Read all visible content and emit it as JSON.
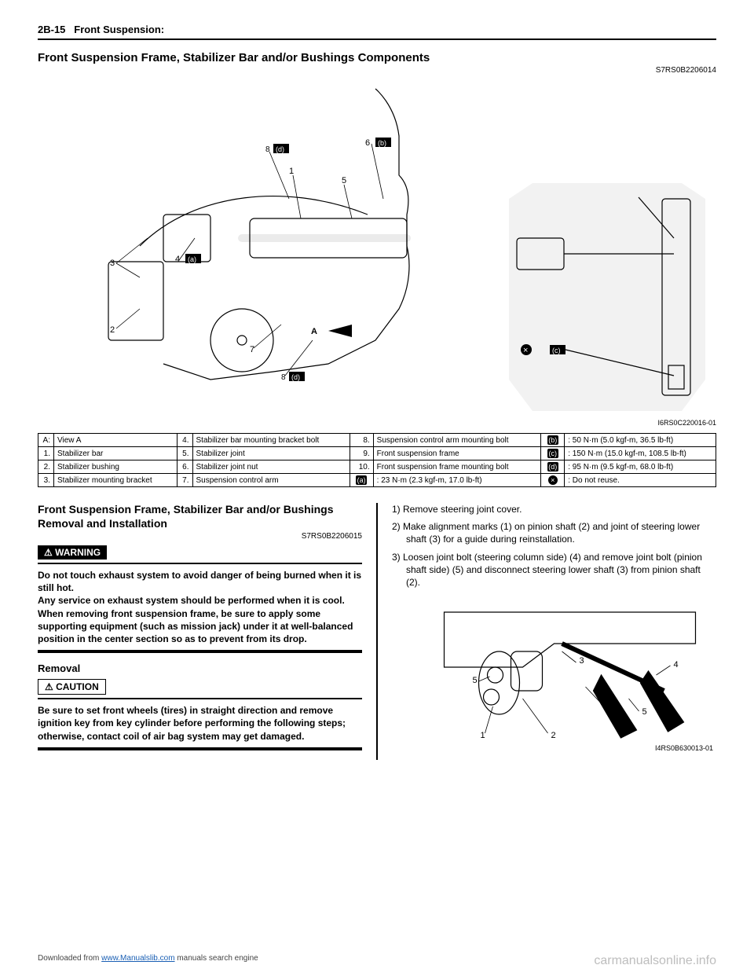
{
  "header": {
    "page_ref": "2B-15",
    "section": "Front Suspension:"
  },
  "title1": "Front Suspension Frame, Stabilizer Bar and/or Bushings Components",
  "ref1": "S7RS0B2206014",
  "diagram1": {
    "code": "I6RS0C220016-01",
    "view_label": "A",
    "arrow_label": "A"
  },
  "parts_table": {
    "rows": [
      [
        "A:",
        "View A",
        "4.",
        "Stabilizer bar mounting bracket bolt",
        "8.",
        "Suspension control arm mounting bolt",
        "(b)",
        "50 N·m (5.0 kgf-m, 36.5 lb-ft)"
      ],
      [
        "1.",
        "Stabilizer bar",
        "5.",
        "Stabilizer joint",
        "9.",
        "Front suspension frame",
        "(c)",
        "150 N·m (15.0 kgf-m, 108.5 lb-ft)"
      ],
      [
        "2.",
        "Stabilizer bushing",
        "6.",
        "Stabilizer joint nut",
        "10.",
        "Front suspension frame mounting bolt",
        "(d)",
        "95 N·m (9.5 kgf-m, 68.0 lb-ft)"
      ],
      [
        "3.",
        "Stabilizer mounting bracket",
        "7.",
        "Suspension control arm",
        "(a)",
        "23 N·m (2.3 kgf-m, 17.0 lb-ft)",
        "×",
        "Do not reuse."
      ]
    ]
  },
  "title2": "Front Suspension Frame, Stabilizer Bar and/or Bushings Removal and Installation",
  "ref2": "S7RS0B2206015",
  "warning_label": "WARNING",
  "warning_text": "Do not touch exhaust system to avoid danger of being burned when it is still hot.\nAny service on exhaust system should be performed when it is cool.\nWhen removing front suspension frame, be sure to apply some supporting equipment (such as mission jack) under it at well-balanced position in the center section so as to prevent from its drop.",
  "removal_heading": "Removal",
  "caution_label": "CAUTION",
  "caution_text": "Be sure to set front wheels (tires) in straight direction and remove ignition key from key cylinder before performing the following steps; otherwise, contact coil of air bag system may get damaged.",
  "steps": [
    "1) Remove steering joint cover.",
    "2) Make alignment marks (1) on pinion shaft (2) and joint of steering lower shaft (3) for a guide during reinstallation.",
    "3) Loosen joint bolt (steering column side) (4) and remove joint bolt (pinion shaft side) (5) and disconnect steering lower shaft (3) from pinion shaft (2)."
  ],
  "diagram2": {
    "code": "I4RS0B630013-01"
  },
  "footer": {
    "left_pre": "Downloaded from ",
    "left_link": "www.Manualslib.com",
    "left_post": " manuals search engine",
    "right": "carmanualsonline.info"
  }
}
